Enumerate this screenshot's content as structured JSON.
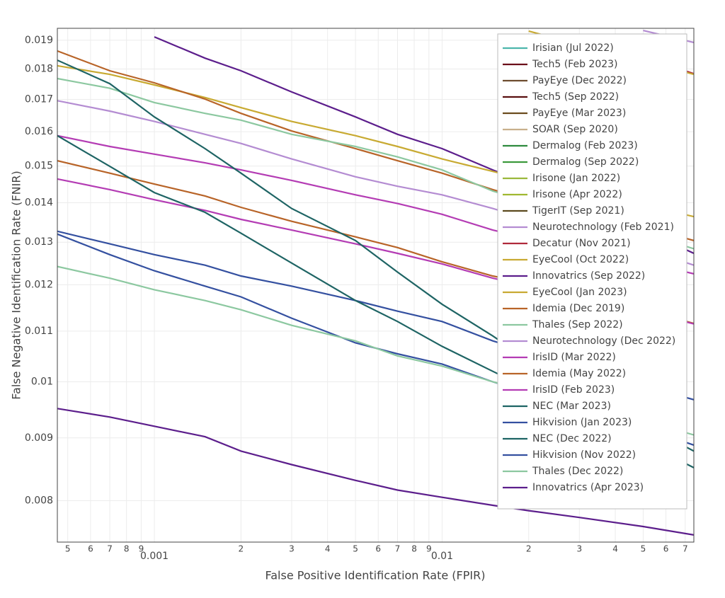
{
  "chart_data": {
    "type": "line",
    "x_label": "False Positive Identification Rate (FPIR)",
    "y_label": "False Negative Identification Rate (FNIR)",
    "x_scale": "log",
    "y_scale": "log",
    "grid": true,
    "legend_position": "top-right",
    "xlim": [
      0.00046,
      0.075
    ],
    "ylim": [
      0.0074,
      0.01943
    ],
    "xticks": [
      {
        "value": 0.0005,
        "label": "5"
      },
      {
        "value": 0.0006,
        "label": "6"
      },
      {
        "value": 0.0007,
        "label": "7"
      },
      {
        "value": 0.0008,
        "label": "8"
      },
      {
        "value": 0.0009,
        "label": "9"
      },
      0.001,
      {
        "value": 0.002,
        "label": "2"
      },
      {
        "value": 0.003,
        "label": "3"
      },
      {
        "value": 0.004,
        "label": "4"
      },
      {
        "value": 0.005,
        "label": "5"
      },
      {
        "value": 0.006,
        "label": "6"
      },
      {
        "value": 0.007,
        "label": "7"
      },
      {
        "value": 0.008,
        "label": "8"
      },
      {
        "value": 0.009,
        "label": "9"
      },
      0.01,
      {
        "value": 0.02,
        "label": "2"
      },
      {
        "value": 0.03,
        "label": "3"
      },
      {
        "value": 0.04,
        "label": "4"
      },
      {
        "value": 0.05,
        "label": "5"
      },
      {
        "value": 0.06,
        "label": "6"
      },
      {
        "value": 0.07,
        "label": "7"
      }
    ],
    "yticks": [
      0.008,
      0.009,
      0.01,
      0.011,
      0.012,
      0.013,
      0.014,
      0.015,
      0.016,
      0.017,
      0.018,
      0.019
    ],
    "x": [
      0.00046,
      0.0007,
      0.001,
      0.0015,
      0.002,
      0.003,
      0.005,
      0.007,
      0.01,
      0.015,
      0.02,
      0.03,
      0.05,
      0.075
    ],
    "series": [
      {
        "name": "Irisian (Jul 2022)",
        "color": "#4db6ac",
        "values": [
          null,
          null,
          null,
          null,
          null,
          null,
          null,
          null,
          null,
          null,
          null,
          null,
          null,
          null
        ]
      },
      {
        "name": "Tech5 (Feb 2023)",
        "color": "#6b0f1a",
        "values": [
          null,
          null,
          null,
          null,
          null,
          null,
          null,
          null,
          null,
          null,
          null,
          null,
          null,
          null
        ]
      },
      {
        "name": "PayEye (Dec 2022)",
        "color": "#6d4c2f",
        "values": [
          null,
          null,
          null,
          null,
          null,
          null,
          null,
          null,
          null,
          null,
          null,
          null,
          null,
          null
        ]
      },
      {
        "name": "Tech5 (Sep 2022)",
        "color": "#5a1010",
        "values": [
          null,
          null,
          null,
          null,
          null,
          null,
          null,
          null,
          null,
          null,
          null,
          null,
          null,
          null
        ]
      },
      {
        "name": "PayEye (Mar 2023)",
        "color": "#6b4c1e",
        "values": [
          null,
          null,
          null,
          null,
          null,
          null,
          null,
          null,
          null,
          null,
          null,
          null,
          null,
          null
        ]
      },
      {
        "name": "SOAR (Sep 2020)",
        "color": "#c8b08c",
        "values": [
          null,
          null,
          null,
          null,
          null,
          null,
          null,
          null,
          null,
          null,
          null,
          null,
          null,
          null
        ]
      },
      {
        "name": "Dermalog (Feb 2023)",
        "color": "#2e8b3e",
        "values": [
          null,
          null,
          null,
          null,
          null,
          null,
          null,
          null,
          null,
          null,
          null,
          null,
          null,
          null
        ]
      },
      {
        "name": "Dermalog (Sep 2022)",
        "color": "#3c9a3c",
        "values": [
          null,
          null,
          null,
          null,
          null,
          null,
          null,
          null,
          null,
          null,
          null,
          null,
          null,
          null
        ]
      },
      {
        "name": "Irisone (Jan 2022)",
        "color": "#9ab83c",
        "values": [
          null,
          null,
          null,
          null,
          null,
          null,
          null,
          null,
          null,
          null,
          null,
          null,
          null,
          null
        ]
      },
      {
        "name": "Irisone (Apr 2022)",
        "color": "#a0b830",
        "values": [
          null,
          null,
          null,
          null,
          null,
          null,
          null,
          null,
          null,
          null,
          null,
          null,
          null,
          null
        ]
      },
      {
        "name": "TigerIT (Sep 2021)",
        "color": "#5c4a1e",
        "values": [
          null,
          null,
          null,
          null,
          null,
          null,
          null,
          null,
          null,
          null,
          null,
          null,
          null,
          null
        ]
      },
      {
        "name": "Neurotechnology (Feb 2021)",
        "color": "#b48cd2",
        "values": [
          0.01696,
          0.01663,
          0.01631,
          0.01592,
          0.01565,
          0.0152,
          0.0147,
          0.01444,
          0.01421,
          0.01385,
          0.01357,
          0.01322,
          0.01284,
          0.01245
        ]
      },
      {
        "name": "Decatur (Nov 2021)",
        "color": "#b02a3c",
        "values": [
          null,
          null,
          null,
          null,
          null,
          null,
          null,
          null,
          null,
          null,
          null,
          0.01899,
          0.01842,
          0.01784
        ]
      },
      {
        "name": "EyeCool (Oct 2022)",
        "color": "#c8aa32",
        "values": [
          null,
          null,
          null,
          null,
          null,
          null,
          null,
          null,
          null,
          null,
          0.01933,
          0.01884,
          0.01828,
          0.01782
        ]
      },
      {
        "name": "Innovatrics (Sep 2022)",
        "color": "#5c1e8c",
        "values": [
          null,
          null,
          0.01912,
          0.01837,
          0.01794,
          0.01724,
          0.01645,
          0.01592,
          0.0155,
          0.01489,
          0.0145,
          0.01394,
          0.0133,
          0.01273
        ]
      },
      {
        "name": "EyeCool (Jan 2023)",
        "color": "#c8aa32",
        "values": [
          0.01811,
          0.01782,
          0.01747,
          0.01706,
          0.01674,
          0.01631,
          0.01588,
          0.01556,
          0.0152,
          0.01485,
          0.0146,
          0.01427,
          0.01394,
          0.01364
        ]
      },
      {
        "name": "Idemia (Dec 2019)",
        "color": "#b86428",
        "values": [
          0.01862,
          0.01794,
          0.01754,
          0.01701,
          0.01656,
          0.01602,
          0.0155,
          0.01515,
          0.0148,
          0.01435,
          0.01407,
          0.01375,
          0.01339,
          0.01304
        ]
      },
      {
        "name": "Thales (Sep 2022)",
        "color": "#8cc8a0",
        "values": [
          0.01768,
          0.01736,
          0.0169,
          0.01656,
          0.01635,
          0.01592,
          0.01556,
          0.01526,
          0.01489,
          0.01431,
          0.01403,
          0.01366,
          0.01322,
          0.01284
        ]
      },
      {
        "name": "Neurotechnology (Dec 2022)",
        "color": "#b48cd2",
        "values": [
          null,
          null,
          null,
          null,
          null,
          null,
          null,
          null,
          null,
          null,
          null,
          null,
          0.01935,
          0.01892
        ]
      },
      {
        "name": "IrisID (Mar 2022)",
        "color": "#b43cb4",
        "values": [
          0.01588,
          0.01556,
          0.01534,
          0.01509,
          0.01489,
          0.0146,
          0.01421,
          0.01398,
          0.0137,
          0.0133,
          0.01309,
          0.01284,
          0.01253,
          0.01225
        ]
      },
      {
        "name": "Idemia (May 2022)",
        "color": "#b86428",
        "values": [
          0.01515,
          0.0148,
          0.0145,
          0.01418,
          0.01388,
          0.01352,
          0.01313,
          0.01287,
          0.01253,
          0.0122,
          0.01204,
          0.01176,
          0.01145,
          0.01116
        ]
      },
      {
        "name": "IrisID (Feb 2023)",
        "color": "#b43cb4",
        "values": [
          0.01464,
          0.01435,
          0.01408,
          0.0138,
          0.01357,
          0.0133,
          0.01296,
          0.01273,
          0.01248,
          0.01215,
          0.01197,
          0.01173,
          0.01142,
          0.01115
        ]
      },
      {
        "name": "NEC (Mar 2023)",
        "color": "#1e6464",
        "values": [
          0.0183,
          0.01751,
          0.01645,
          0.0155,
          0.0148,
          0.01385,
          0.01304,
          0.01229,
          0.01157,
          0.0109,
          0.01041,
          0.0098,
          0.00923,
          0.00878
        ]
      },
      {
        "name": "Hikvision (Jan 2023)",
        "color": "#3450a0",
        "values": [
          0.01327,
          0.01296,
          0.0127,
          0.01245,
          0.0122,
          0.01197,
          0.01165,
          0.01142,
          0.0112,
          0.0108,
          0.01058,
          0.01027,
          0.00993,
          0.00967
        ]
      },
      {
        "name": "NEC (Dec 2022)",
        "color": "#1e6464",
        "values": [
          0.01588,
          0.01499,
          0.01427,
          0.01375,
          0.01322,
          0.0125,
          0.01165,
          0.0112,
          0.01069,
          0.0102,
          0.00987,
          0.00942,
          0.00893,
          0.00851
        ]
      },
      {
        "name": "Hikvision (Nov 2022)",
        "color": "#3450a0",
        "values": [
          0.0132,
          0.0127,
          0.01232,
          0.01197,
          0.01173,
          0.01127,
          0.01076,
          0.01054,
          0.01034,
          0.01,
          0.0098,
          0.00948,
          0.00917,
          0.00888
        ]
      },
      {
        "name": "Thales (Dec 2022)",
        "color": "#8cc8a0",
        "values": [
          0.01242,
          0.01215,
          0.01189,
          0.01165,
          0.01145,
          0.01112,
          0.0108,
          0.0105,
          0.0103,
          0.01,
          0.00983,
          0.00957,
          0.0093,
          0.00905
        ]
      },
      {
        "name": "Innovatrics (Apr 2023)",
        "color": "#5c1e8c",
        "values": [
          0.00951,
          0.00936,
          0.0092,
          0.00902,
          0.00878,
          0.00856,
          0.00831,
          0.00816,
          0.00805,
          0.00793,
          0.00785,
          0.00775,
          0.00762,
          0.0075
        ]
      }
    ]
  }
}
